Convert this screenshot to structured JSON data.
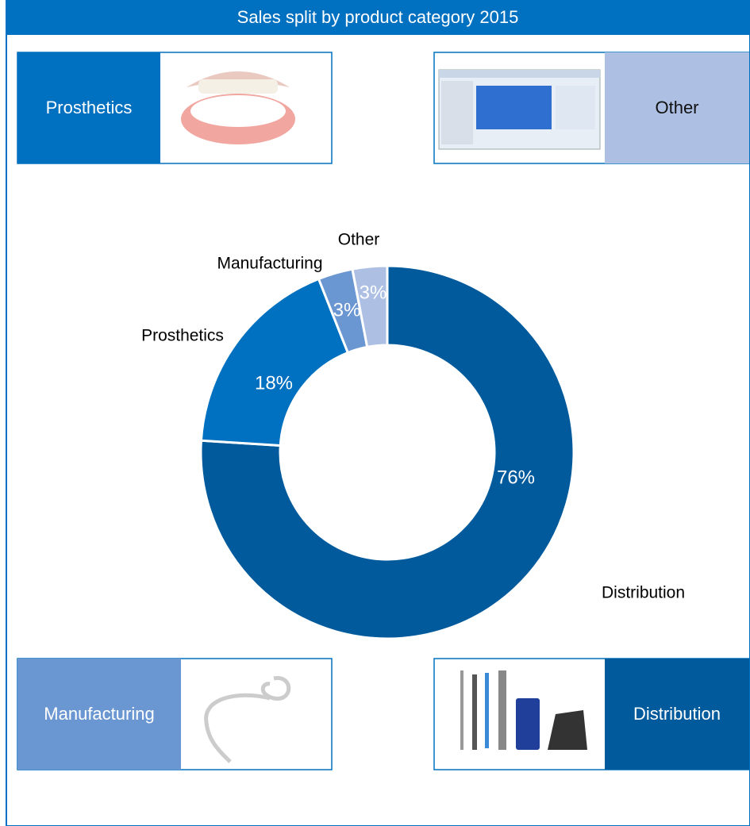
{
  "chart_data": {
    "type": "donut",
    "title": "Sales split by product category 2015",
    "categories": [
      "Distribution",
      "Prosthetics",
      "Manufacturing",
      "Other"
    ],
    "values": [
      76,
      18,
      3,
      3
    ],
    "value_labels": [
      "76%",
      "18%",
      "3%",
      "3%"
    ],
    "colors": [
      "#005a9c",
      "#0070c0",
      "#6a96d2",
      "#adc0e4"
    ]
  },
  "panels": [
    "Prosthetics",
    "Other",
    "Manufacturing",
    "Distribution"
  ]
}
